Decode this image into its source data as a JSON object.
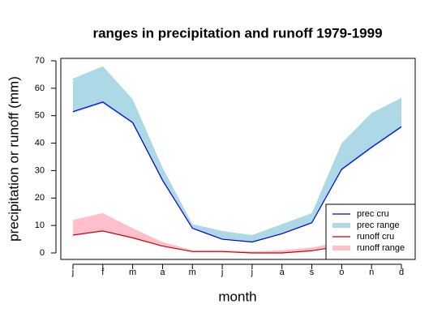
{
  "chart_data": {
    "type": "line",
    "title": "ranges in precipitation and runoff 1979-1999",
    "x_label": "month",
    "y_label": "precipitation or runoff (mm)",
    "categories": [
      "j",
      "f",
      "m",
      "a",
      "m",
      "j",
      "j",
      "a",
      "s",
      "o",
      "n",
      "d"
    ],
    "ylim": [
      0,
      70
    ],
    "yticks": [
      0,
      10,
      20,
      30,
      40,
      50,
      60,
      70
    ],
    "legend": "bottom-right",
    "series": [
      {
        "name": "prec cru",
        "kind": "line",
        "color": "#0000cd",
        "values": [
          51.5,
          55,
          47.5,
          26.5,
          9,
          5,
          4,
          7,
          11,
          30.5,
          38.5,
          46
        ]
      },
      {
        "name": "prec range",
        "kind": "band",
        "color": "#add8e6",
        "lower": [
          51,
          54.5,
          47,
          26,
          9,
          5,
          4,
          7,
          11,
          30,
          38,
          45.5
        ],
        "upper": [
          63.5,
          68,
          56,
          31,
          10.5,
          8,
          6.5,
          10.5,
          14.5,
          40,
          51,
          56.5
        ]
      },
      {
        "name": "runoff cru",
        "kind": "line",
        "color": "#cc0000",
        "values": [
          6.5,
          8,
          5.5,
          2.5,
          0.5,
          0.5,
          0,
          0,
          0.8,
          2.5,
          3,
          3.5
        ]
      },
      {
        "name": "runoff range",
        "kind": "band",
        "color": "#ffc0cb",
        "lower": [
          6.5,
          8,
          5.5,
          2.5,
          0.5,
          0.5,
          0,
          0,
          0.8,
          2.5,
          3,
          3.5
        ],
        "upper": [
          12,
          14.5,
          9,
          4,
          1,
          1,
          0.5,
          1,
          2,
          4,
          5,
          6
        ]
      }
    ]
  }
}
